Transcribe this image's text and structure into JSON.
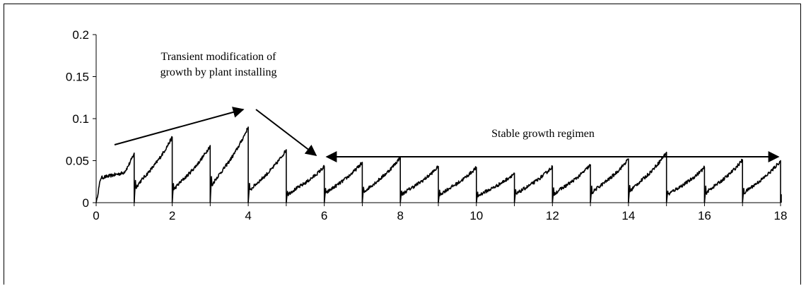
{
  "chart_data": {
    "type": "line",
    "title": "",
    "xlabel": "",
    "ylabel": "",
    "xlim": [
      0,
      18
    ],
    "ylim": [
      0,
      0.2
    ],
    "x_ticks": [
      "0",
      "2",
      "4",
      "6",
      "8",
      "10",
      "12",
      "14",
      "16",
      "18"
    ],
    "y_ticks": [
      "0",
      "0.05",
      "0.1",
      "0.15",
      "0.2"
    ],
    "grid": false,
    "legend": "none",
    "series": [
      {
        "color": "#000000",
        "cycles": [
          {
            "start": 0,
            "end": 1,
            "start_value": 0.0,
            "peak": 0.059
          },
          {
            "start": 1,
            "end": 2,
            "start_value": 0.0,
            "peak": 0.078
          },
          {
            "start": 2,
            "end": 3,
            "start_value": 0.0,
            "peak": 0.068
          },
          {
            "start": 3,
            "end": 4,
            "start_value": 0.0,
            "peak": 0.09
          },
          {
            "start": 4,
            "end": 5,
            "start_value": 0.0,
            "peak": 0.063
          },
          {
            "start": 5,
            "end": 6,
            "start_value": 0.0,
            "peak": 0.043
          },
          {
            "start": 6,
            "end": 7,
            "start_value": 0.0,
            "peak": 0.048
          },
          {
            "start": 7,
            "end": 8,
            "start_value": 0.0,
            "peak": 0.054
          },
          {
            "start": 8,
            "end": 9,
            "start_value": 0.0,
            "peak": 0.043
          },
          {
            "start": 9,
            "end": 10,
            "start_value": 0.0,
            "peak": 0.042
          },
          {
            "start": 10,
            "end": 11,
            "start_value": 0.0,
            "peak": 0.035
          },
          {
            "start": 11,
            "end": 12,
            "start_value": 0.0,
            "peak": 0.043
          },
          {
            "start": 12,
            "end": 13,
            "start_value": 0.0,
            "peak": 0.045
          },
          {
            "start": 13,
            "end": 14,
            "start_value": 0.0,
            "peak": 0.052
          },
          {
            "start": 14,
            "end": 15,
            "start_value": 0.0,
            "peak": 0.06
          },
          {
            "start": 15,
            "end": 16,
            "start_value": 0.0,
            "peak": 0.042
          },
          {
            "start": 16,
            "end": 17,
            "start_value": 0.0,
            "peak": 0.051
          },
          {
            "start": 17,
            "end": 18,
            "start_value": 0.0,
            "peak": 0.05
          }
        ]
      }
    ],
    "annotations": [
      {
        "text_lines": [
          "Transient modification of",
          "growth by plant installing"
        ],
        "arrows": "from 0.5 up to 4, then down to 6"
      },
      {
        "text": "Stable growth regimen",
        "arrow": "double-headed, from 6 to 18 at y ≈ 0.054"
      }
    ]
  }
}
